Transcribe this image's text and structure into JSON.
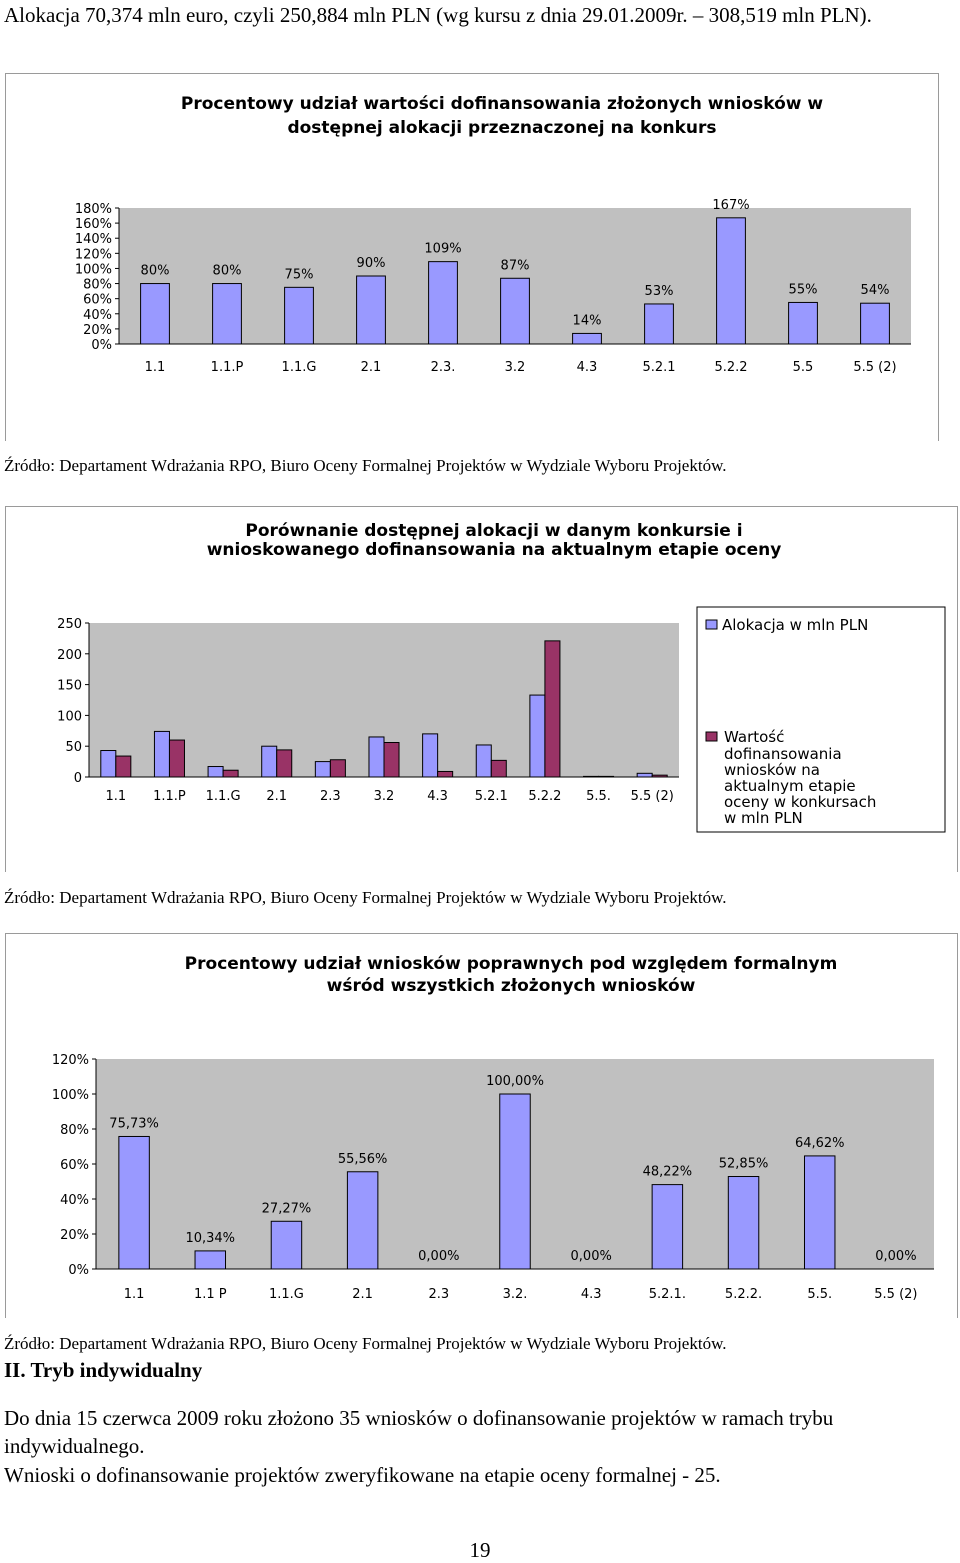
{
  "intro_text": "Alokacja 70,374 mln euro, czyli 250,884 mln PLN (wg kursu z dnia 29.01.2009r. – 308,519 mln PLN).",
  "source_text": "Źródło: Departament Wdrażania RPO, Biuro Oceny Formalnej Projektów w Wydziale Wyboru Projektów.",
  "section_heading": "II. Tryb indywidualny",
  "paragraph_1": "Do dnia 15 czerwca 2009 roku złożono 35 wniosków o dofinansowanie projektów w ramach trybu indywidualnego.",
  "paragraph_2": "Wnioski o dofinansowanie projektów zweryfikowane na etapie oceny formalnej - 25.",
  "page_number": "19",
  "colors": {
    "bar": "#9999ff",
    "bar2": "#993366",
    "plot_bg": "#c0c0c0",
    "frame": "#9a9a9a"
  },
  "chart_data": [
    {
      "type": "bar",
      "title_lines": [
        "Procentowy udział wartości dofinansowania złożonych wniosków w",
        "dostępnej alokacji przeznaczonej na konkurs"
      ],
      "categories": [
        "1.1",
        "1.1.P",
        "1.1.G",
        "2.1",
        "2.3.",
        "3.2",
        "4.3",
        "5.2.1",
        "5.2.2",
        "5.5",
        "5.5 (2)"
      ],
      "values": [
        80,
        80,
        75,
        90,
        109,
        87,
        14,
        53,
        167,
        55,
        54
      ],
      "value_labels": [
        "80%",
        "80%",
        "75%",
        "90%",
        "109%",
        "87%",
        "14%",
        "53%",
        "167%",
        "55%",
        "54%"
      ],
      "ytick_labels": [
        "0%",
        "20%",
        "40%",
        "60%",
        "80%",
        "100%",
        "120%",
        "140%",
        "160%",
        "180%"
      ],
      "ylim": [
        0,
        180
      ],
      "grid": false,
      "legend": "none"
    },
    {
      "type": "bar",
      "title_lines": [
        "Porównanie dostępnej alokacji w danym konkursie i",
        "wnioskowanego dofinansowania na aktualnym etapie oceny"
      ],
      "categories": [
        "1.1",
        "1.1.P",
        "1.1.G",
        "2.1",
        "2.3",
        "3.2",
        "4.3",
        "5.2.1",
        "5.2.2",
        "5.5.",
        "5.5 (2)"
      ],
      "series": [
        {
          "name": "Alokacja w mln PLN",
          "values": [
            43,
            74,
            17,
            50,
            25,
            65,
            70,
            52,
            133,
            1,
            6
          ]
        },
        {
          "name": "Wartość dofinansowania wniosków na aktualnym etapie oceny w konkursach w mln PLN",
          "values": [
            34,
            60,
            11,
            44,
            28,
            56,
            9,
            27,
            221,
            1,
            3
          ]
        }
      ],
      "ytick_labels": [
        "0",
        "50",
        "100",
        "150",
        "200",
        "250"
      ],
      "ylim": [
        0,
        250
      ],
      "grid": false,
      "legend": "right"
    },
    {
      "type": "bar",
      "title_lines": [
        "Procentowy udział wniosków poprawnych pod względem formalnym",
        "wśród wszystkich złożonych wniosków"
      ],
      "categories": [
        "1.1",
        "1.1 P",
        "1.1.G",
        "2.1",
        "2.3",
        "3.2.",
        "4.3",
        "5.2.1.",
        "5.2.2.",
        "5.5.",
        "5.5 (2)"
      ],
      "values": [
        75.73,
        10.34,
        27.27,
        55.56,
        0,
        100,
        0,
        48.22,
        52.85,
        64.62,
        0
      ],
      "value_labels": [
        "75,73%",
        "10,34%",
        "27,27%",
        "55,56%",
        "0,00%",
        "100,00%",
        "0,00%",
        "48,22%",
        "52,85%",
        "64,62%",
        "0,00%"
      ],
      "ytick_labels": [
        "0%",
        "20%",
        "40%",
        "60%",
        "80%",
        "100%",
        "120%"
      ],
      "ylim": [
        0,
        120
      ],
      "grid": false,
      "legend": "none"
    }
  ]
}
